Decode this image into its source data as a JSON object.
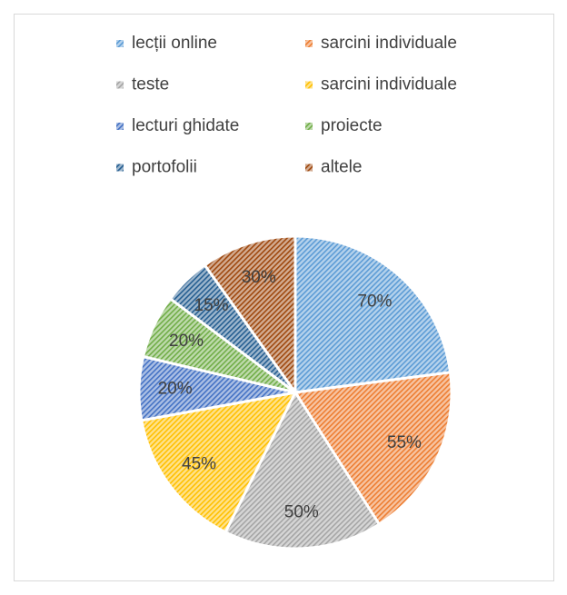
{
  "chart_data": {
    "type": "pie",
    "categories": [
      "lecții online",
      "sarcini individuale",
      "teste",
      "sarcini individuale",
      "lecturi ghidate",
      "proiecte",
      "portofolii",
      "altele"
    ],
    "values": [
      70,
      55,
      50,
      45,
      20,
      20,
      15,
      30
    ],
    "value_labels": [
      "70%",
      "55%",
      "50%",
      "45%",
      "20%",
      "20%",
      "15%",
      "30%"
    ],
    "colors": [
      "#5b9bd5",
      "#ed7d31",
      "#a5a5a5",
      "#ffc000",
      "#4472c4",
      "#70ad47",
      "#255e91",
      "#9e480e"
    ],
    "legend": "top"
  }
}
